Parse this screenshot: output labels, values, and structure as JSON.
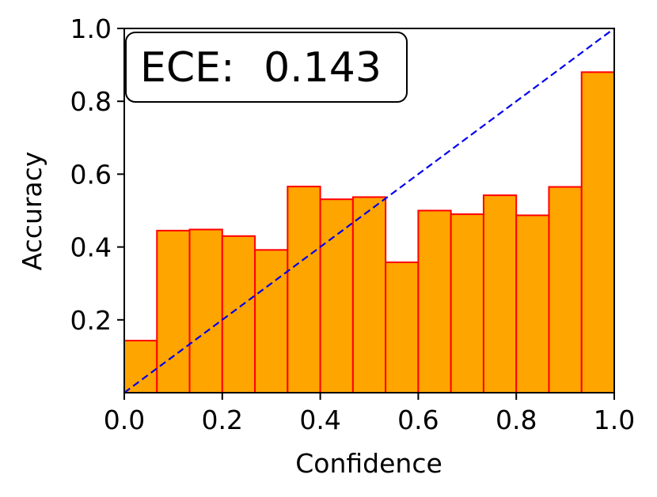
{
  "chart_data": {
    "type": "bar",
    "xlabel": "Confidence",
    "ylabel": "Accuracy",
    "xlim": [
      0,
      1
    ],
    "ylim": [
      0,
      1
    ],
    "grid": false,
    "annotation": {
      "prefix": "ECE:",
      "value": "0.143",
      "placement": "top-left"
    },
    "x_ticks": [
      "0.0",
      "0.2",
      "0.4",
      "0.6",
      "0.8",
      "1.0"
    ],
    "y_ticks": [
      "0.2",
      "0.4",
      "0.6",
      "0.8",
      "1.0"
    ],
    "bin_count": 15,
    "values": [
      0.143,
      0.445,
      0.448,
      0.43,
      0.392,
      0.566,
      0.531,
      0.537,
      0.358,
      0.5,
      0.49,
      0.542,
      0.487,
      0.565,
      0.88
    ],
    "reference_line": {
      "from": [
        0,
        0
      ],
      "to": [
        1,
        1
      ],
      "style": "dashed",
      "color": "#0000ee"
    },
    "bar_fill": "#ffa500",
    "bar_edge": "#ff0000"
  }
}
